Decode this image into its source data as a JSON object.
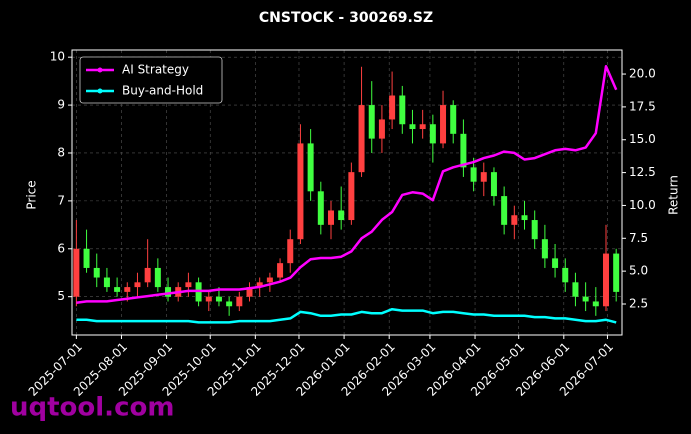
{
  "chart_data": {
    "type": "candlestick",
    "title": "CNSTOCK - 300269.SZ",
    "ylabel": "Price",
    "y2label": "Return",
    "x": [
      "2025-07-01",
      "2025-07-08",
      "2025-07-15",
      "2025-07-22",
      "2025-07-29",
      "2025-08-05",
      "2025-08-12",
      "2025-08-19",
      "2025-08-26",
      "2025-09-02",
      "2025-09-09",
      "2025-09-16",
      "2025-09-23",
      "2025-09-30",
      "2025-10-07",
      "2025-10-14",
      "2025-10-21",
      "2025-10-28",
      "2025-11-04",
      "2025-11-11",
      "2025-11-18",
      "2025-11-25",
      "2025-12-02",
      "2025-12-09",
      "2025-12-16",
      "2025-12-23",
      "2025-12-30",
      "2026-01-06",
      "2026-01-13",
      "2026-01-20",
      "2026-01-27",
      "2026-02-03",
      "2026-02-10",
      "2026-02-17",
      "2026-02-24",
      "2026-03-03",
      "2026-03-10",
      "2026-03-17",
      "2026-03-24",
      "2026-03-31",
      "2026-04-07",
      "2026-04-14",
      "2026-04-21",
      "2026-04-28",
      "2026-05-05",
      "2026-05-12",
      "2026-05-19",
      "2026-05-26",
      "2026-06-02",
      "2026-06-09",
      "2026-06-16",
      "2026-06-23",
      "2026-06-30",
      "2026-07-07"
    ],
    "open": [
      5.0,
      6.0,
      5.6,
      5.4,
      5.2,
      5.1,
      5.2,
      5.3,
      5.6,
      5.2,
      5.0,
      5.2,
      5.3,
      4.9,
      5.0,
      4.9,
      4.8,
      5.0,
      5.2,
      5.3,
      5.4,
      5.7,
      6.2,
      8.2,
      7.2,
      6.5,
      6.8,
      6.6,
      7.6,
      9.0,
      8.3,
      8.7,
      9.2,
      8.6,
      8.5,
      8.6,
      8.2,
      9.0,
      8.4,
      7.7,
      7.4,
      7.6,
      7.1,
      6.5,
      6.7,
      6.6,
      6.2,
      5.8,
      5.6,
      5.3,
      5.0,
      4.9,
      4.8,
      5.9
    ],
    "high": [
      6.6,
      6.4,
      5.9,
      5.6,
      5.4,
      5.3,
      5.5,
      6.2,
      5.8,
      5.4,
      5.3,
      5.5,
      5.4,
      5.1,
      5.2,
      5.0,
      5.1,
      5.3,
      5.4,
      5.5,
      5.8,
      6.4,
      8.6,
      8.5,
      7.4,
      7.0,
      7.3,
      7.8,
      9.8,
      9.5,
      9.0,
      9.7,
      9.4,
      8.9,
      8.9,
      8.8,
      9.3,
      9.1,
      8.7,
      7.9,
      7.8,
      7.7,
      7.3,
      6.9,
      7.0,
      6.8,
      6.5,
      6.1,
      5.8,
      5.5,
      5.3,
      5.2,
      6.5,
      6.0
    ],
    "low": [
      4.8,
      5.5,
      5.2,
      5.1,
      5.0,
      4.9,
      5.0,
      5.2,
      5.1,
      4.9,
      4.9,
      5.0,
      4.8,
      4.7,
      4.8,
      4.6,
      4.7,
      4.9,
      5.0,
      5.1,
      5.3,
      5.5,
      6.1,
      7.0,
      6.3,
      6.2,
      6.4,
      6.5,
      7.5,
      8.0,
      8.0,
      8.5,
      8.4,
      8.2,
      8.3,
      7.8,
      8.1,
      8.2,
      7.5,
      7.2,
      7.1,
      6.9,
      6.3,
      6.2,
      6.4,
      6.0,
      5.6,
      5.4,
      5.1,
      4.8,
      4.7,
      4.6,
      4.7,
      4.9
    ],
    "close": [
      6.0,
      5.6,
      5.4,
      5.2,
      5.1,
      5.2,
      5.3,
      5.6,
      5.2,
      5.0,
      5.2,
      5.3,
      4.9,
      5.0,
      4.9,
      4.8,
      5.0,
      5.2,
      5.3,
      5.4,
      5.7,
      6.2,
      8.2,
      7.2,
      6.5,
      6.8,
      6.6,
      7.6,
      9.0,
      8.3,
      8.7,
      9.2,
      8.6,
      8.5,
      8.6,
      8.2,
      9.0,
      8.4,
      7.7,
      7.4,
      7.6,
      7.1,
      6.5,
      6.7,
      6.6,
      6.2,
      5.8,
      5.6,
      5.3,
      5.0,
      4.9,
      4.8,
      5.9,
      5.1
    ],
    "up_color": "#ff4040",
    "down_color": "#40ff40",
    "series": [
      {
        "name": "AI Strategy",
        "color": "#ff00ff",
        "axis": "y2",
        "values": [
          2.6,
          2.7,
          2.7,
          2.7,
          2.8,
          2.9,
          3.0,
          3.1,
          3.2,
          3.3,
          3.4,
          3.5,
          3.5,
          3.5,
          3.6,
          3.6,
          3.6,
          3.7,
          3.8,
          4.0,
          4.2,
          4.5,
          5.3,
          5.9,
          6.0,
          6.0,
          6.1,
          6.5,
          7.5,
          8.0,
          8.9,
          9.5,
          10.8,
          11.0,
          10.9,
          10.4,
          12.6,
          12.9,
          13.1,
          13.3,
          13.6,
          13.8,
          14.1,
          14.0,
          13.5,
          13.6,
          13.9,
          14.2,
          14.3,
          14.2,
          14.4,
          15.5,
          20.6,
          18.8
        ]
      },
      {
        "name": "Buy-and-Hold",
        "color": "#00ffff",
        "axis": "y2",
        "values": [
          1.3,
          1.3,
          1.2,
          1.2,
          1.2,
          1.2,
          1.2,
          1.2,
          1.2,
          1.2,
          1.2,
          1.2,
          1.1,
          1.1,
          1.1,
          1.1,
          1.2,
          1.2,
          1.2,
          1.2,
          1.3,
          1.4,
          1.9,
          1.8,
          1.6,
          1.6,
          1.7,
          1.7,
          1.9,
          1.8,
          1.8,
          2.1,
          2.0,
          2.0,
          2.0,
          1.8,
          1.9,
          1.9,
          1.8,
          1.7,
          1.7,
          1.6,
          1.6,
          1.6,
          1.6,
          1.5,
          1.5,
          1.4,
          1.4,
          1.3,
          1.2,
          1.2,
          1.3,
          1.1
        ]
      }
    ],
    "xlim": [
      "2025-06-28",
      "2026-07-11"
    ],
    "xticks": [
      "2025-07-01",
      "2025-08-01",
      "2025-09-01",
      "2025-10-01",
      "2025-11-01",
      "2025-12-01",
      "2026-01-01",
      "2026-02-01",
      "2026-03-01",
      "2026-04-01",
      "2026-05-01",
      "2026-06-01",
      "2026-07-01"
    ],
    "ylim": [
      4.2,
      10.15
    ],
    "yticks": [
      5,
      6,
      7,
      8,
      9,
      10
    ],
    "y2lim": [
      0.14,
      21.83
    ],
    "y2ticks": [
      2.5,
      {
        "value": 5.0,
        "label": "5.0"
      },
      7.5,
      {
        "value": 10.0,
        "label": "10.0"
      },
      12.5,
      {
        "value": 15.0,
        "label": "15.0"
      },
      17.5,
      {
        "value": 20.0,
        "label": "20.0"
      }
    ],
    "grid": true,
    "legend": "upper left"
  },
  "watermark": "uqtool.com"
}
